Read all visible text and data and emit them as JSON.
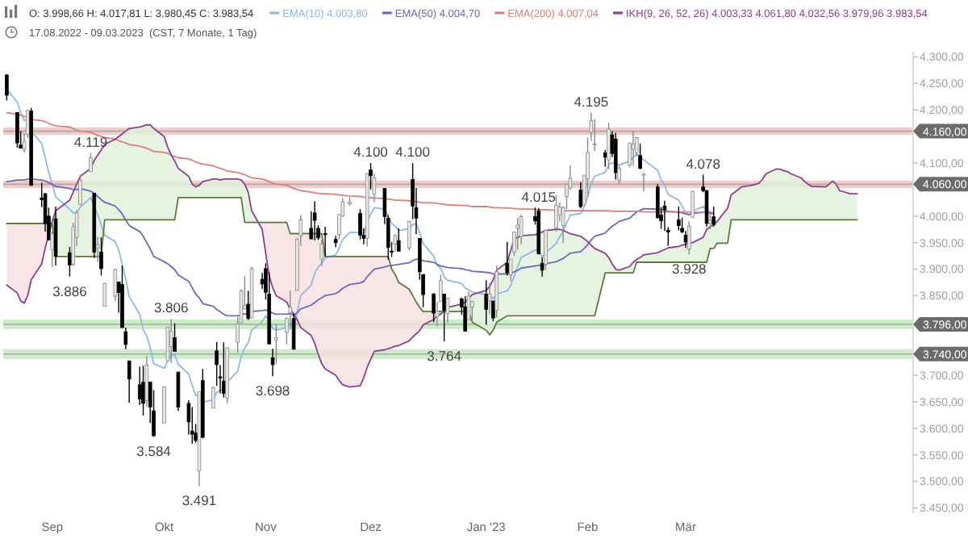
{
  "chart_data": {
    "type": "candlestick",
    "title": "O: 3.998,66 H: 4.017,81 L: 3.980,45 C: 3.983,54",
    "subtitle": "17.08.2022 - 09.03.2023  (CST, 7 Monate, 1 Tag)",
    "x": [
      "2022-08-19",
      "2022-08-22",
      "2022-08-23",
      "2022-08-24",
      "2022-08-25",
      "2022-08-26",
      "2022-08-29",
      "2022-08-30",
      "2022-08-31",
      "2022-09-01",
      "2022-09-02",
      "2022-09-06",
      "2022-09-07",
      "2022-09-08",
      "2022-09-09",
      "2022-09-12",
      "2022-09-13",
      "2022-09-14",
      "2022-09-15",
      "2022-09-16",
      "2022-09-19",
      "2022-09-20",
      "2022-09-21",
      "2022-09-22",
      "2022-09-23",
      "2022-09-26",
      "2022-09-27",
      "2022-09-28",
      "2022-09-29",
      "2022-09-30",
      "2022-10-03",
      "2022-10-04",
      "2022-10-05",
      "2022-10-06",
      "2022-10-07",
      "2022-10-10",
      "2022-10-11",
      "2022-10-12",
      "2022-10-13",
      "2022-10-14",
      "2022-10-17",
      "2022-10-18",
      "2022-10-19",
      "2022-10-20",
      "2022-10-21",
      "2022-10-24",
      "2022-10-25",
      "2022-10-26",
      "2022-10-27",
      "2022-10-28",
      "2022-10-31",
      "2022-11-01",
      "2022-11-02",
      "2022-11-03",
      "2022-11-04",
      "2022-11-07",
      "2022-11-08",
      "2022-11-09",
      "2022-11-10",
      "2022-11-11",
      "2022-11-14",
      "2022-11-15",
      "2022-11-16",
      "2022-11-17",
      "2022-11-18",
      "2022-11-21",
      "2022-11-22",
      "2022-11-23",
      "2022-11-25",
      "2022-11-28",
      "2022-11-29",
      "2022-11-30",
      "2022-12-01",
      "2022-12-02",
      "2022-12-05",
      "2022-12-06",
      "2022-12-07",
      "2022-12-08",
      "2022-12-09",
      "2022-12-12",
      "2022-12-13",
      "2022-12-14",
      "2022-12-15",
      "2022-12-16",
      "2022-12-19",
      "2022-12-20",
      "2022-12-21",
      "2022-12-22",
      "2022-12-23",
      "2022-12-27",
      "2022-12-28",
      "2022-12-29",
      "2022-12-30",
      "2023-01-03",
      "2023-01-04",
      "2023-01-05",
      "2023-01-06",
      "2023-01-09",
      "2023-01-10",
      "2023-01-11",
      "2023-01-12",
      "2023-01-13",
      "2023-01-17",
      "2023-01-18",
      "2023-01-19",
      "2023-01-20",
      "2023-01-23",
      "2023-01-24",
      "2023-01-25",
      "2023-01-26",
      "2023-01-27",
      "2023-01-30",
      "2023-01-31",
      "2023-02-01",
      "2023-02-02",
      "2023-02-03",
      "2023-02-06",
      "2023-02-07",
      "2023-02-08",
      "2023-02-09",
      "2023-02-10",
      "2023-02-13",
      "2023-02-14",
      "2023-02-15",
      "2023-02-16",
      "2023-02-17",
      "2023-02-21",
      "2023-02-22",
      "2023-02-23",
      "2023-02-24",
      "2023-02-27",
      "2023-02-28",
      "2023-03-01",
      "2023-03-02",
      "2023-03-03",
      "2023-03-06",
      "2023-03-07",
      "2023-03-08",
      "2023-03-09"
    ],
    "ohlc": [
      [
        4266,
        4267,
        4218,
        4228
      ],
      [
        4195,
        4196,
        4129,
        4138
      ],
      [
        4134,
        4160,
        4128,
        4128
      ],
      [
        4126,
        4156,
        4120,
        4141
      ],
      [
        4154,
        4200,
        4147,
        4199
      ],
      [
        4198,
        4204,
        4057,
        4058
      ],
      [
        4034,
        4063,
        4017,
        4031
      ],
      [
        4042,
        4044,
        3971,
        3986
      ],
      [
        4000,
        4016,
        3954,
        3955
      ],
      [
        3937,
        3971,
        3904,
        3967
      ],
      [
        3995,
        4018,
        3907,
        3924
      ],
      [
        3931,
        3942,
        3886,
        3908
      ],
      [
        3909,
        3987,
        3906,
        3980
      ],
      [
        3960,
        4011,
        3944,
        4006
      ],
      [
        4022,
        4077,
        4022,
        4067
      ],
      [
        4084,
        4119,
        4084,
        4110
      ],
      [
        4043,
        4044,
        3921,
        3932
      ],
      [
        3940,
        3961,
        3913,
        3946
      ],
      [
        3932,
        3960,
        3888,
        3901
      ],
      [
        3830,
        3874,
        3830,
        3873
      ],
      [
        3849,
        3901,
        3840,
        3899
      ],
      [
        3876,
        3876,
        3818,
        3856
      ],
      [
        3871,
        3907,
        3789,
        3790
      ],
      [
        3782,
        3790,
        3749,
        3758
      ],
      [
        3727,
        3727,
        3648,
        3693
      ],
      [
        3682,
        3716,
        3644,
        3655
      ],
      [
        3687,
        3718,
        3624,
        3647
      ],
      [
        3652,
        3736,
        3640,
        3719
      ],
      [
        3687,
        3688,
        3610,
        3640
      ],
      [
        3633,
        3672,
        3584,
        3586
      ],
      [
        3610,
        3679,
        3610,
        3678
      ],
      [
        3727,
        3791,
        3727,
        3791
      ],
      [
        3754,
        3806,
        3723,
        3783
      ],
      [
        3771,
        3798,
        3745,
        3745
      ],
      [
        3706,
        3706,
        3633,
        3640
      ],
      [
        3647,
        3653,
        3588,
        3612
      ],
      [
        3595,
        3640,
        3571,
        3589
      ],
      [
        3591,
        3608,
        3573,
        3577
      ],
      [
        3520,
        3669,
        3491,
        3669
      ],
      [
        3690,
        3712,
        3581,
        3583
      ],
      [
        3638,
        3679,
        3638,
        3677
      ],
      [
        3746,
        3763,
        3680,
        3720
      ],
      [
        3697,
        3719,
        3666,
        3695
      ],
      [
        3689,
        3762,
        3658,
        3666
      ],
      [
        3657,
        3753,
        3647,
        3752
      ],
      [
        3762,
        3810,
        3742,
        3797
      ],
      [
        3799,
        3862,
        3799,
        3859
      ],
      [
        3825,
        3887,
        3824,
        3831
      ],
      [
        3834,
        3859,
        3804,
        3807
      ],
      [
        3808,
        3905,
        3808,
        3901
      ],
      [
        3881,
        3893,
        3863,
        3872
      ],
      [
        3901,
        3911,
        3843,
        3856
      ],
      [
        3853,
        3894,
        3759,
        3759
      ],
      [
        3733,
        3750,
        3698,
        3720
      ],
      [
        3767,
        3796,
        3721,
        3771
      ],
      [
        3781,
        3809,
        3758,
        3807
      ],
      [
        3818,
        3860,
        3786,
        3828
      ],
      [
        3807,
        3817,
        3749,
        3749
      ],
      [
        3860,
        3959,
        3860,
        3956
      ],
      [
        3963,
        4002,
        3944,
        3993
      ],
      [
        3977,
        4009,
        3957,
        3957
      ],
      [
        4006,
        4028,
        3954,
        3992
      ],
      [
        3977,
        3983,
        3955,
        3959
      ],
      [
        3919,
        3955,
        3906,
        3947
      ],
      [
        3967,
        3980,
        3924,
        3965
      ],
      [
        3956,
        3963,
        3941,
        3950
      ],
      [
        3965,
        4003,
        3956,
        4003
      ],
      [
        4000,
        4034,
        3998,
        4027
      ],
      [
        4023,
        4035,
        4020,
        4026
      ],
      [
        4005,
        4013,
        3956,
        3964
      ],
      [
        3964,
        3977,
        3947,
        3958
      ],
      [
        3958,
        4081,
        3943,
        4080
      ],
      [
        4087,
        4100,
        4050,
        4076
      ],
      [
        4041,
        4080,
        4026,
        4072
      ],
      [
        4052,
        4052,
        3985,
        3999
      ],
      [
        3996,
        4002,
        3918,
        3941
      ],
      [
        3934,
        3951,
        3923,
        3933
      ],
      [
        3947,
        3966,
        3933,
        3963
      ],
      [
        3954,
        3977,
        3933,
        3934
      ],
      [
        3940,
        3991,
        3936,
        3990
      ],
      [
        4069,
        4100,
        3994,
        4019
      ],
      [
        4016,
        4053,
        3966,
        3996
      ],
      [
        3958,
        3958,
        3880,
        3895
      ],
      [
        3890,
        3890,
        3828,
        3852
      ],
      [
        3853,
        3855,
        3800,
        3817
      ],
      [
        3810,
        3839,
        3792,
        3821
      ],
      [
        3839,
        3889,
        3839,
        3878
      ],
      [
        3853,
        3853,
        3764,
        3822
      ],
      [
        3816,
        3846,
        3799,
        3845
      ],
      [
        3844,
        3846,
        3814,
        3829
      ],
      [
        3829,
        3849,
        3783,
        3783
      ],
      [
        3805,
        3858,
        3805,
        3849
      ],
      [
        3829,
        3840,
        3800,
        3839
      ],
      [
        3853,
        3879,
        3795,
        3824
      ],
      [
        3840,
        3874,
        3815,
        3853
      ],
      [
        3840,
        3840,
        3802,
        3808
      ],
      [
        3823,
        3907,
        3809,
        3895
      ],
      [
        3911,
        3951,
        3888,
        3893
      ],
      [
        3889,
        3919,
        3877,
        3919
      ],
      [
        3932,
        3970,
        3925,
        3970
      ],
      [
        3977,
        3997,
        3937,
        3983
      ],
      [
        3961,
        4003,
        3947,
        3999
      ],
      [
        3999,
        4016,
        3984,
        3991
      ],
      [
        4010,
        4015,
        3928,
        3929
      ],
      [
        3911,
        3922,
        3886,
        3898
      ],
      [
        3909,
        3973,
        3899,
        3973
      ],
      [
        3978,
        4039,
        3971,
        4020
      ],
      [
        4002,
        4026,
        3990,
        4017
      ],
      [
        3982,
        4019,
        3949,
        4016
      ],
      [
        4037,
        4061,
        4013,
        4060
      ],
      [
        4053,
        4095,
        4049,
        4071
      ],
      [
        4049,
        4064,
        4015,
        4018
      ],
      [
        4021,
        4077,
        4020,
        4077
      ],
      [
        4070,
        4148,
        4037,
        4120
      ],
      [
        4158,
        4195,
        4142,
        4180
      ],
      [
        4136,
        4183,
        4123,
        4136
      ],
      [
        4119,
        4125,
        4093,
        4111
      ],
      [
        4106,
        4176,
        4088,
        4164
      ],
      [
        4153,
        4160,
        4111,
        4118
      ],
      [
        4145,
        4157,
        4069,
        4082
      ],
      [
        4068,
        4095,
        4060,
        4090
      ],
      [
        4096,
        4139,
        4092,
        4137
      ],
      [
        4126,
        4160,
        4095,
        4136
      ],
      [
        4119,
        4149,
        4113,
        4148
      ],
      [
        4114,
        4137,
        4088,
        4090
      ],
      [
        4077,
        4081,
        4047,
        4079
      ],
      [
        4055,
        4060,
        3995,
        3997
      ],
      [
        4002,
        4017,
        3976,
        3991
      ],
      [
        4019,
        4029,
        3972,
        4012
      ],
      [
        3973,
        3979,
        3944,
        3970
      ],
      [
        3993,
        4018,
        3973,
        3982
      ],
      [
        3977,
        3997,
        3968,
        3970
      ],
      [
        3964,
        3972,
        3940,
        3951
      ],
      [
        3938,
        3990,
        3928,
        3981
      ],
      [
        3998,
        4048,
        3997,
        4046
      ],
      [
        4055,
        4078,
        4045,
        4048
      ],
      [
        4048,
        4050,
        3980,
        3986
      ],
      [
        3987,
        4002,
        3975,
        3992
      ],
      [
        3998.66,
        4017.81,
        3980.45,
        3983.54
      ]
    ],
    "series": [
      {
        "type": "line",
        "name": "EMA(10) 4.003,80",
        "color": "#8fb8e8",
        "values": [
          4240,
          4215,
          4195,
          4180,
          4183,
          4160,
          4137,
          4110,
          4082,
          4061,
          4036,
          4013,
          4006,
          4006,
          4017,
          4035,
          4016,
          4003,
          3983,
          3964,
          3952,
          3936,
          3909,
          3882,
          3848,
          3815,
          3786,
          3774,
          3752,
          3722,
          3713,
          3727,
          3737,
          3739,
          3721,
          3702,
          3681,
          3662,
          3663,
          3649,
          3654,
          3667,
          3672,
          3672,
          3687,
          3708,
          3735,
          3751,
          3761,
          3785,
          3801,
          3812,
          3803,
          3788,
          3785,
          3790,
          3798,
          3789,
          3819,
          3850,
          3870,
          3892,
          3904,
          3911,
          3921,
          3927,
          3940,
          3956,
          3969,
          3969,
          3967,
          3988,
          4004,
          4016,
          4013,
          3999,
          3986,
          3981,
          3973,
          3976,
          3984,
          3986,
          3969,
          3948,
          3925,
          3907,
          3902,
          3886,
          3879,
          3873,
          3864,
          3861,
          3857,
          3852,
          3852,
          3844,
          3853,
          3859,
          3869,
          3887,
          3905,
          3922,
          3936,
          3935,
          3923,
          3931,
          3948,
          3961,
          3971,
          3987,
          4002,
          4005,
          4018,
          4036,
          4062,
          4075,
          4082,
          4097,
          4101,
          4098,
          4096,
          4104,
          4110,
          4117,
          4112,
          4106,
          4086,
          4069,
          4058,
          4041,
          4030,
          4019,
          4006,
          4002,
          4010,
          4018,
          4012,
          4008,
          4004
        ]
      },
      {
        "type": "line",
        "name": "EMA(50) 4.004,70",
        "color": "#6b6bb8",
        "values": [
          4065,
          4068,
          4068,
          4068,
          4070,
          4070,
          4068,
          4066,
          4063,
          4060,
          4056,
          4052,
          4050,
          4050,
          4052,
          4047,
          4043,
          4037,
          4031,
          4026,
          4019,
          4012,
          4004,
          3993,
          3982,
          3971,
          3962,
          3950,
          3938,
          3924,
          3914,
          3910,
          3905,
          3899,
          3889,
          3877,
          3865,
          3853,
          3846,
          3835,
          3830,
          3824,
          3820,
          3815,
          3812,
          3812,
          3814,
          3816,
          3816,
          3820,
          3822,
          3823,
          3821,
          3817,
          3815,
          3815,
          3816,
          3813,
          3818,
          3825,
          3832,
          3837,
          3842,
          3846,
          3850,
          3854,
          3858,
          3864,
          3871,
          3874,
          3877,
          3886,
          3893,
          3900,
          3904,
          3906,
          3907,
          3908,
          3909,
          3912,
          3916,
          3919,
          3918,
          3916,
          3913,
          3909,
          3906,
          3905,
          3903,
          3901,
          3899,
          3898,
          3896,
          3894,
          3893,
          3891,
          3891,
          3891,
          3892,
          3895,
          3898,
          3902,
          3906,
          3907,
          3907,
          3910,
          3914,
          3917,
          3920,
          3925,
          3930,
          3933,
          3939,
          3946,
          3955,
          3962,
          3968,
          3975,
          3981,
          3985,
          3990,
          3996,
          4002,
          4008,
          4011,
          4014,
          4013,
          4012,
          4011,
          4009,
          4007,
          4006,
          4004,
          4003,
          4005,
          4007,
          4006,
          4005,
          4005
        ]
      },
      {
        "type": "line",
        "name": "EMA(200) 4.007,04",
        "color": "#d98080",
        "values": [
          4195,
          4192,
          4190,
          4188,
          4185,
          4182,
          4180,
          4178,
          4175,
          4172,
          4170,
          4168,
          4165,
          4162,
          4160,
          4158,
          4155,
          4152,
          4150,
          4148,
          4145,
          4142,
          4140,
          4138,
          4135,
          4132,
          4130,
          4128,
          4125,
          4122,
          4120,
          4118,
          4115,
          4112,
          4110,
          4108,
          4105,
          4102,
          4100,
          4098,
          4095,
          4092,
          4090,
          4088,
          4085,
          4082,
          4080,
          4078,
          4075,
          4072,
          4070,
          4068,
          4065,
          4062,
          4060,
          4058,
          4055,
          4052,
          4050,
          4048,
          4045,
          4044,
          4043,
          4042,
          4042,
          4041,
          4040,
          4039,
          4038,
          4037,
          4036,
          4035,
          4035,
          4034,
          4033,
          4032,
          4031,
          4030,
          4030,
          4029,
          4028,
          4027,
          4026,
          4025,
          4025,
          4024,
          4023,
          4022,
          4021,
          4020,
          4020,
          4019,
          4018,
          4018,
          4017,
          4016,
          4016,
          4015,
          4015,
          4014,
          4014,
          4013,
          4013,
          4012,
          4012,
          4012,
          4011,
          4011,
          4011,
          4010,
          4010,
          4010,
          4010,
          4010,
          4010,
          4010,
          4010,
          4010,
          4009,
          4009,
          4009,
          4009,
          4009,
          4009,
          4009,
          4008,
          4008,
          4008,
          4008,
          4008,
          4008,
          4008,
          4008,
          4008,
          4007,
          4007,
          4007,
          4007,
          4007
        ]
      },
      {
        "type": "line",
        "name": "IKH(9, 26, 52, 26) 4.003,33 4.061,80 4.032,56 3.979,96 3.983,54",
        "color": "#8e3f8e",
        "x": [
          "2022-08-19",
          "2022-08-22",
          "2022-08-23",
          "2022-08-24",
          "2022-08-25",
          "2022-08-26",
          "2022-08-29",
          "2022-08-30",
          "2022-08-31",
          "2022-09-01",
          "2022-09-02",
          "2022-09-06",
          "2022-09-07",
          "2022-09-08",
          "2022-09-09",
          "2022-09-12",
          "2022-09-13",
          "2022-09-14",
          "2022-09-15",
          "2022-09-16",
          "2022-09-19",
          "2022-09-20",
          "2022-09-21",
          "2022-09-22",
          "2022-09-23",
          "2022-09-26",
          "2022-09-27",
          "2022-09-28",
          "2022-09-29",
          "2022-09-30",
          "2022-10-03",
          "2022-10-04",
          "2022-10-05",
          "2022-10-06",
          "2022-10-07",
          "2022-10-10",
          "2022-10-11",
          "2022-10-12",
          "2022-10-13",
          "2022-10-14",
          "2022-10-17",
          "2022-10-18",
          "2022-10-19",
          "2022-10-20",
          "2022-10-21",
          "2022-10-24",
          "2022-10-25",
          "2022-10-26",
          "2022-10-27",
          "2022-10-28",
          "2022-10-31",
          "2022-11-01",
          "2022-11-02",
          "2022-11-03",
          "2022-11-04",
          "2022-11-07",
          "2022-11-08",
          "2022-11-09",
          "2022-11-10",
          "2022-11-11",
          "2022-11-14",
          "2022-11-15",
          "2022-11-16",
          "2022-11-17",
          "2022-11-18",
          "2022-11-21",
          "2022-11-22",
          "2022-11-23",
          "2022-11-25",
          "2022-11-28",
          "2022-11-29",
          "2022-11-30",
          "2022-12-01",
          "2022-12-02",
          "2022-12-05",
          "2022-12-06",
          "2022-12-07",
          "2022-12-08",
          "2022-12-09",
          "2022-12-12",
          "2022-12-13",
          "2022-12-14",
          "2022-12-15",
          "2022-12-16",
          "2022-12-19",
          "2022-12-20",
          "2022-12-21",
          "2022-12-22",
          "2022-12-23",
          "2022-12-27",
          "2022-12-28",
          "2022-12-29",
          "2022-12-30",
          "2023-01-03",
          "2023-01-04",
          "2023-01-05",
          "2023-01-06",
          "2023-01-09",
          "2023-01-10",
          "2023-01-11",
          "2023-01-12",
          "2023-01-13",
          "2023-01-17",
          "2023-01-18",
          "2023-01-19",
          "2023-01-20",
          "2023-01-23",
          "2023-01-24",
          "2023-01-25",
          "2023-01-26",
          "2023-01-27",
          "2023-01-30",
          "2023-01-31",
          "2023-02-01",
          "2023-02-02",
          "2023-02-03",
          "2023-02-06",
          "2023-02-07",
          "2023-02-08",
          "2023-02-09",
          "2023-02-10",
          "2023-02-13",
          "2023-02-14",
          "2023-02-15",
          "2023-02-16",
          "2023-02-17",
          "2023-02-21",
          "2023-02-22",
          "2023-02-23",
          "2023-02-24",
          "2023-02-27",
          "2023-02-28",
          "2023-03-01",
          "2023-03-02",
          "2023-03-03",
          "2023-03-06",
          "2023-03-07",
          "2023-03-08",
          "2023-03-09",
          "2023-03-10",
          "2023-03-13",
          "2023-03-14",
          "2023-03-15",
          "2023-03-16",
          "2023-03-17",
          "2023-03-20",
          "2023-03-21",
          "2023-03-22",
          "2023-03-23",
          "2023-03-24",
          "2023-03-27",
          "2023-03-28",
          "2023-03-29",
          "2023-03-30",
          "2023-03-31",
          "2023-04-03",
          "2023-04-04",
          "2023-04-05",
          "2023-04-06",
          "2023-04-10",
          "2023-04-11",
          "2023-04-12",
          "2023-04-13",
          "2023-04-14",
          "2023-04-17",
          "2023-04-18",
          "2023-04-19"
        ],
        "values": [
          3870,
          3855,
          3840,
          3836,
          3850,
          3880,
          3910,
          3940,
          3965,
          3990,
          4010,
          4030,
          4045,
          4060,
          4075,
          4090,
          4105,
          4115,
          4125,
          4135,
          4145,
          4150,
          4155,
          4160,
          4165,
          4168,
          4170,
          4172,
          4172,
          4165,
          4150,
          4130,
          4115,
          4104,
          4090,
          4075,
          4060,
          4055,
          4058,
          4065,
          4070,
          4070,
          4068,
          4070,
          4070,
          4070,
          4068,
          4060,
          4045,
          4010,
          3975,
          3930,
          3887,
          3865,
          3850,
          3838,
          3825,
          3815,
          3805,
          3790,
          3775,
          3760,
          3740,
          3722,
          3712,
          3700,
          3690,
          3682,
          3678,
          3680,
          3695,
          3715,
          3730,
          3745,
          3748,
          3750,
          3752,
          3755,
          3756,
          3765,
          3772,
          3778,
          3784,
          3795,
          3805,
          3812,
          3815,
          3822,
          3828,
          3834,
          3838,
          3845,
          3852,
          3860,
          3868,
          3880,
          3898,
          3913,
          3935,
          3957,
          3960,
          3963,
          3965,
          3968,
          3970,
          3973,
          3975,
          3975,
          3973,
          3970,
          3967,
          3962,
          3957,
          3952,
          3945,
          3939,
          3930,
          3922,
          3910,
          3900,
          3898,
          3905,
          3913,
          3918,
          3922,
          3927,
          3931,
          3934,
          3937,
          3940,
          3943,
          3945,
          3947,
          3949,
          3950,
          3960,
          3975,
          3980,
          3983,
          3990,
          4015,
          4040,
          4045,
          4050,
          4055,
          4058,
          4060,
          4062,
          4070,
          4080,
          4089,
          4088,
          4086,
          4084,
          4080,
          4072,
          4065,
          4060,
          4056,
          4055,
          4060,
          4066,
          4060,
          4048,
          4042,
          4042,
          4042
        ]
      },
      {
        "type": "line",
        "color": "#5e7a3e",
        "x": [
          "2022-08-19",
          "2022-08-22",
          "2022-08-23",
          "2022-08-24",
          "2022-08-25",
          "2022-08-26",
          "2022-08-29",
          "2022-08-30",
          "2022-08-31",
          "2022-09-01",
          "2022-09-02",
          "2022-09-06",
          "2022-09-07",
          "2022-09-08",
          "2022-09-09",
          "2022-09-12",
          "2022-09-13",
          "2022-09-14",
          "2022-09-15",
          "2022-09-16",
          "2022-09-19",
          "2022-09-20",
          "2022-09-21",
          "2022-09-22",
          "2022-09-23",
          "2022-09-26",
          "2022-09-27",
          "2022-09-28",
          "2022-09-29",
          "2022-09-30",
          "2022-10-03",
          "2022-10-04",
          "2022-10-05",
          "2022-10-06",
          "2022-10-07",
          "2022-10-10",
          "2022-10-11",
          "2022-10-12",
          "2022-10-13",
          "2022-10-14",
          "2022-10-17",
          "2022-10-18",
          "2022-10-19",
          "2022-10-20",
          "2022-10-21",
          "2022-10-24",
          "2022-10-25",
          "2022-10-26",
          "2022-10-27",
          "2022-10-28",
          "2022-10-31",
          "2022-11-01",
          "2022-11-02",
          "2022-11-03",
          "2022-11-04",
          "2022-11-07",
          "2022-11-08",
          "2022-11-09",
          "2022-11-10",
          "2022-11-11",
          "2022-11-14",
          "2022-11-15",
          "2022-11-16",
          "2022-11-17",
          "2022-11-18",
          "2022-11-21",
          "2022-11-22",
          "2022-11-23",
          "2022-11-25",
          "2022-11-28",
          "2022-11-29",
          "2022-11-30",
          "2022-12-01",
          "2022-12-02",
          "2022-12-05",
          "2022-12-06",
          "2022-12-07",
          "2022-12-08",
          "2022-12-09",
          "2022-12-12",
          "2022-12-13",
          "2022-12-14",
          "2022-12-15",
          "2022-12-16",
          "2022-12-19",
          "2022-12-20",
          "2022-12-21",
          "2022-12-22",
          "2022-12-23",
          "2022-12-27",
          "2022-12-28",
          "2022-12-29",
          "2022-12-30",
          "2023-01-03",
          "2023-01-04",
          "2023-01-05",
          "2023-01-06",
          "2023-01-09",
          "2023-01-10",
          "2023-01-11",
          "2023-01-12",
          "2023-01-13",
          "2023-01-17",
          "2023-01-18",
          "2023-01-19",
          "2023-01-20",
          "2023-01-23",
          "2023-01-24",
          "2023-01-25",
          "2023-01-26",
          "2023-01-27",
          "2023-01-30",
          "2023-01-31",
          "2023-02-01",
          "2023-02-02",
          "2023-02-03",
          "2023-02-06",
          "2023-02-07",
          "2023-02-08",
          "2023-02-09",
          "2023-02-10",
          "2023-02-13",
          "2023-02-14",
          "2023-02-15",
          "2023-02-16",
          "2023-02-17",
          "2023-02-21",
          "2023-02-22",
          "2023-02-23",
          "2023-02-24",
          "2023-02-27",
          "2023-02-28",
          "2023-03-01",
          "2023-03-02",
          "2023-03-03",
          "2023-03-06",
          "2023-03-07",
          "2023-03-08",
          "2023-03-09",
          "2023-03-10",
          "2023-03-13",
          "2023-03-14",
          "2023-03-15",
          "2023-03-16",
          "2023-03-17",
          "2023-03-20",
          "2023-03-21",
          "2023-03-22",
          "2023-03-23",
          "2023-03-24",
          "2023-03-27",
          "2023-03-28",
          "2023-03-29",
          "2023-03-30",
          "2023-03-31",
          "2023-04-03",
          "2023-04-04",
          "2023-04-05",
          "2023-04-06",
          "2023-04-10",
          "2023-04-11",
          "2023-04-12",
          "2023-04-13",
          "2023-04-14",
          "2023-04-17",
          "2023-04-18",
          "2023-04-19"
        ],
        "values": [
          3986,
          3986,
          3986,
          3986,
          3986,
          3986,
          3986,
          3986,
          3986,
          3986,
          3924,
          3924,
          3924,
          3924,
          3924,
          3924,
          3924,
          3924,
          3924,
          3993,
          3993,
          3993,
          3993,
          3993,
          3993,
          3993,
          3993,
          3993,
          3993,
          3993,
          3993,
          3993,
          3993,
          3993,
          4035,
          4035,
          4035,
          4035,
          4035,
          4035,
          4035,
          4035,
          4035,
          4035,
          4035,
          4035,
          4035,
          3988,
          3988,
          3988,
          3988,
          3988,
          3988,
          3988,
          3988,
          3988,
          3967,
          3967,
          3967,
          3967,
          3967,
          3967,
          3967,
          3967,
          3924,
          3924,
          3924,
          3924,
          3924,
          3924,
          3924,
          3924,
          3924,
          3924,
          3924,
          3924,
          3900,
          3890,
          3875,
          3862,
          3850,
          3838,
          3828,
          3820,
          3820,
          3820,
          3820,
          3820,
          3820,
          3820,
          3820,
          3820,
          3800,
          3785,
          3776,
          3785,
          3800,
          3812,
          3812,
          3812,
          3812,
          3812,
          3812,
          3812,
          3812,
          3812,
          3812,
          3812,
          3812,
          3812,
          3812,
          3812,
          3812,
          3812,
          3812,
          3812,
          3893,
          3893,
          3893,
          3893,
          3893,
          3893,
          3893,
          3913,
          3913,
          3913,
          3913,
          3913,
          3913,
          3913,
          3913,
          3913,
          3913,
          3913,
          3913,
          3913,
          3913,
          3939,
          3939,
          3949,
          3949,
          3993,
          3993,
          3993,
          3993,
          3993,
          3993,
          3993,
          3993,
          3993,
          3993,
          3993,
          3993,
          3993,
          3993,
          3993,
          3993,
          3993,
          3993,
          3993,
          3993,
          3993,
          3993,
          3993,
          3993,
          3993,
          3993
        ]
      }
    ],
    "xlim": [
      "2022-08-18",
      "2023-05-05"
    ],
    "xticks": [
      {
        "value": "2022-09-01",
        "label": "Sep"
      },
      {
        "value": "2022-10-03",
        "label": "Okt"
      },
      {
        "value": "2022-11-01",
        "label": "Nov"
      },
      {
        "value": "2022-12-01",
        "label": "Dez"
      },
      {
        "value": "2023-01-03",
        "label": "Jan '23"
      },
      {
        "value": "2023-02-01",
        "label": "Feb"
      },
      {
        "value": "2023-03-01",
        "label": "Mär"
      }
    ],
    "ylim": [
      3440,
      4310
    ],
    "yticks": [
      {
        "value": 3450,
        "label": "3.450,00"
      },
      {
        "value": 3500,
        "label": "3.500,00"
      },
      {
        "value": 3550,
        "label": "3.550,00"
      },
      {
        "value": 3600,
        "label": "3.600,00"
      },
      {
        "value": 3650,
        "label": "3.650,00"
      },
      {
        "value": 3700,
        "label": "3.700,00"
      },
      {
        "value": 3850,
        "label": "3.850,00"
      },
      {
        "value": 3900,
        "label": "3.900,00"
      },
      {
        "value": 3950,
        "label": "3.950,00"
      },
      {
        "value": 4000,
        "label": "4.000,00"
      },
      {
        "value": 4100,
        "label": "4.100,00"
      },
      {
        "value": 4200,
        "label": "4.200,00"
      },
      {
        "value": 4250,
        "label": "4.250,00"
      },
      {
        "value": 4300,
        "label": "4.300,00"
      }
    ],
    "ref_lines": [
      {
        "axis": "y",
        "value": 4160,
        "label": "4.160,00",
        "color": "#aaaaaa"
      },
      {
        "axis": "y",
        "value": 4060,
        "label": "4.060,00",
        "color": "#aaaaaa"
      },
      {
        "axis": "y",
        "value": 3796,
        "label": "3.796,00",
        "color": "#aaaaaa"
      },
      {
        "axis": "y",
        "value": 3740,
        "label": "3.740,00",
        "color": "#aaaaaa"
      }
    ],
    "bands": [
      {
        "axis": "y",
        "from": 4153,
        "to": 4167,
        "color": "#eaa8a8"
      },
      {
        "axis": "y",
        "from": 4053,
        "to": 4067,
        "color": "#eaa8a8"
      },
      {
        "axis": "y",
        "from": 3787,
        "to": 3805,
        "color": "#a9e2a0"
      },
      {
        "axis": "y",
        "from": 3731,
        "to": 3749,
        "color": "#a9e2a0"
      }
    ],
    "annotations": [
      {
        "text": "4.119",
        "x": "2022-09-12",
        "y": 4119
      },
      {
        "text": "3.886",
        "x": "2022-09-06",
        "y": 3886
      },
      {
        "text": "3.806",
        "x": "2022-10-05",
        "y": 3806
      },
      {
        "text": "3.584",
        "x": "2022-09-30",
        "y": 3584
      },
      {
        "text": "3.491",
        "x": "2022-10-13",
        "y": 3491
      },
      {
        "text": "3.698",
        "x": "2022-11-03",
        "y": 3698
      },
      {
        "text": "4.100",
        "x": "2022-12-01",
        "y": 4100
      },
      {
        "text": "4.100",
        "x": "2022-12-13",
        "y": 4100
      },
      {
        "text": "3.764",
        "x": "2022-12-22",
        "y": 3764
      },
      {
        "text": "4.015",
        "x": "2023-01-18",
        "y": 4015
      },
      {
        "text": "4.195",
        "x": "2023-02-02",
        "y": 4195
      },
      {
        "text": "4.078",
        "x": "2023-03-06",
        "y": 4078
      },
      {
        "text": "3.928",
        "x": "2023-03-02",
        "y": 3928
      }
    ],
    "legend": "top right"
  }
}
